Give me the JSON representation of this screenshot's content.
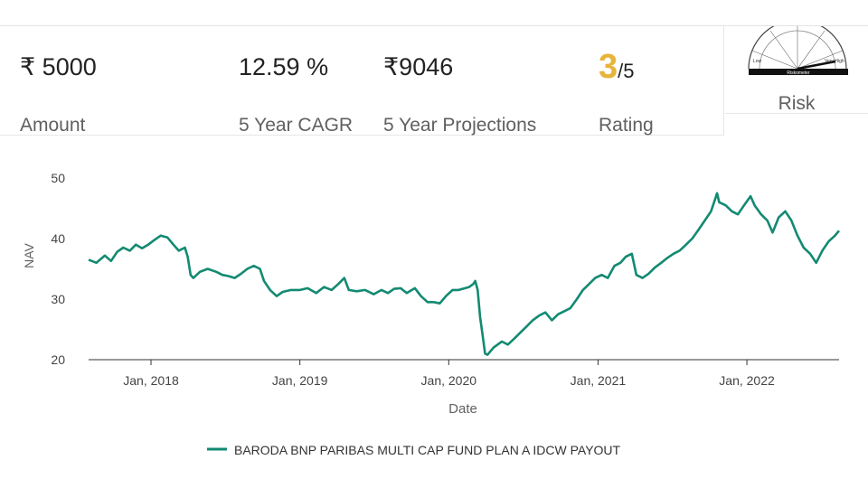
{
  "stats": {
    "amount": {
      "value": "₹ 5000",
      "label": "Amount"
    },
    "cagr": {
      "value": "12.59 %",
      "label": "5 Year CAGR"
    },
    "projection": {
      "value": "₹9046",
      "label": "5 Year Projections"
    },
    "rating": {
      "value": "3",
      "suffix": "/5",
      "label": "Rating"
    },
    "risk": {
      "label": "Risk",
      "meter_text": "Riskometer",
      "meter_low": "Low",
      "meter_high": "Very High",
      "needle_level": "Very High"
    }
  },
  "colors": {
    "line": "#138a72",
    "rating": "#e7b43a",
    "axis": "#333333",
    "label": "#606060"
  },
  "chart_data": {
    "type": "line",
    "xlabel": "Date",
    "ylabel": "NAV",
    "ylim": [
      20,
      50
    ],
    "yticks": [
      20,
      30,
      40,
      50
    ],
    "xticks": [
      "Jan, 2018",
      "Jan, 2019",
      "Jan, 2020",
      "Jan, 2021",
      "Jan, 2022"
    ],
    "xrange": [
      "2017-08-01",
      "2022-08-15"
    ],
    "legend_position": "bottom",
    "series": [
      {
        "name": "BARODA BNP PARIBAS MULTI CAP FUND PLAN A IDCW PAYOUT",
        "points": [
          [
            "2017-08-01",
            36.5
          ],
          [
            "2017-08-20",
            36.0
          ],
          [
            "2017-09-10",
            37.2
          ],
          [
            "2017-09-25",
            36.3
          ],
          [
            "2017-10-10",
            37.8
          ],
          [
            "2017-10-25",
            38.5
          ],
          [
            "2017-11-10",
            38.0
          ],
          [
            "2017-11-25",
            39.0
          ],
          [
            "2017-12-10",
            38.4
          ],
          [
            "2017-12-25",
            39.0
          ],
          [
            "2018-01-10",
            39.8
          ],
          [
            "2018-01-25",
            40.5
          ],
          [
            "2018-02-10",
            40.2
          ],
          [
            "2018-02-25",
            39.0
          ],
          [
            "2018-03-10",
            38.0
          ],
          [
            "2018-03-25",
            38.5
          ],
          [
            "2018-04-01",
            37.0
          ],
          [
            "2018-04-08",
            34.0
          ],
          [
            "2018-04-15",
            33.5
          ],
          [
            "2018-05-01",
            34.5
          ],
          [
            "2018-05-20",
            35.0
          ],
          [
            "2018-06-10",
            34.5
          ],
          [
            "2018-06-25",
            34.0
          ],
          [
            "2018-07-10",
            33.8
          ],
          [
            "2018-07-25",
            33.5
          ],
          [
            "2018-08-10",
            34.2
          ],
          [
            "2018-08-25",
            35.0
          ],
          [
            "2018-09-10",
            35.5
          ],
          [
            "2018-09-25",
            35.0
          ],
          [
            "2018-10-05",
            33.0
          ],
          [
            "2018-10-20",
            31.5
          ],
          [
            "2018-11-05",
            30.5
          ],
          [
            "2018-11-20",
            31.2
          ],
          [
            "2018-12-10",
            31.5
          ],
          [
            "2019-01-01",
            31.5
          ],
          [
            "2019-01-20",
            31.8
          ],
          [
            "2019-02-10",
            31.0
          ],
          [
            "2019-03-01",
            32.0
          ],
          [
            "2019-03-20",
            31.5
          ],
          [
            "2019-04-05",
            32.5
          ],
          [
            "2019-04-20",
            33.5
          ],
          [
            "2019-05-01",
            31.5
          ],
          [
            "2019-05-20",
            31.3
          ],
          [
            "2019-06-10",
            31.5
          ],
          [
            "2019-07-01",
            30.8
          ],
          [
            "2019-07-20",
            31.5
          ],
          [
            "2019-08-05",
            31.0
          ],
          [
            "2019-08-20",
            31.7
          ],
          [
            "2019-09-05",
            31.8
          ],
          [
            "2019-09-20",
            31.0
          ],
          [
            "2019-10-10",
            31.8
          ],
          [
            "2019-10-25",
            30.5
          ],
          [
            "2019-11-10",
            29.5
          ],
          [
            "2019-11-25",
            29.5
          ],
          [
            "2019-12-10",
            29.3
          ],
          [
            "2019-12-25",
            30.5
          ],
          [
            "2020-01-10",
            31.5
          ],
          [
            "2020-01-25",
            31.5
          ],
          [
            "2020-02-10",
            31.8
          ],
          [
            "2020-02-20",
            32.0
          ],
          [
            "2020-03-01",
            32.5
          ],
          [
            "2020-03-06",
            33.0
          ],
          [
            "2020-03-12",
            31.5
          ],
          [
            "2020-03-18",
            27.0
          ],
          [
            "2020-03-24",
            24.0
          ],
          [
            "2020-03-30",
            21.0
          ],
          [
            "2020-04-05",
            20.8
          ],
          [
            "2020-04-20",
            22.0
          ],
          [
            "2020-05-10",
            23.0
          ],
          [
            "2020-05-25",
            22.5
          ],
          [
            "2020-06-10",
            23.5
          ],
          [
            "2020-06-25",
            24.5
          ],
          [
            "2020-07-10",
            25.5
          ],
          [
            "2020-07-25",
            26.5
          ],
          [
            "2020-08-10",
            27.3
          ],
          [
            "2020-08-25",
            27.8
          ],
          [
            "2020-09-10",
            26.5
          ],
          [
            "2020-09-25",
            27.5
          ],
          [
            "2020-10-10",
            28.0
          ],
          [
            "2020-10-25",
            28.5
          ],
          [
            "2020-11-10",
            30.0
          ],
          [
            "2020-11-25",
            31.5
          ],
          [
            "2020-12-10",
            32.5
          ],
          [
            "2020-12-25",
            33.5
          ],
          [
            "2021-01-10",
            34.0
          ],
          [
            "2021-01-25",
            33.5
          ],
          [
            "2021-02-10",
            35.5
          ],
          [
            "2021-02-25",
            36.0
          ],
          [
            "2021-03-10",
            37.0
          ],
          [
            "2021-03-25",
            37.5
          ],
          [
            "2021-04-05",
            34.0
          ],
          [
            "2021-04-20",
            33.5
          ],
          [
            "2021-05-05",
            34.2
          ],
          [
            "2021-05-20",
            35.2
          ],
          [
            "2021-06-05",
            36.0
          ],
          [
            "2021-06-20",
            36.8
          ],
          [
            "2021-07-05",
            37.5
          ],
          [
            "2021-07-20",
            38.0
          ],
          [
            "2021-08-05",
            39.0
          ],
          [
            "2021-08-20",
            40.0
          ],
          [
            "2021-09-05",
            41.5
          ],
          [
            "2021-09-20",
            43.0
          ],
          [
            "2021-10-05",
            44.5
          ],
          [
            "2021-10-15",
            46.5
          ],
          [
            "2021-10-20",
            47.5
          ],
          [
            "2021-10-25",
            46.0
          ],
          [
            "2021-11-10",
            45.5
          ],
          [
            "2021-11-25",
            44.5
          ],
          [
            "2021-12-10",
            44.0
          ],
          [
            "2021-12-25",
            45.5
          ],
          [
            "2022-01-10",
            47.0
          ],
          [
            "2022-01-20",
            45.5
          ],
          [
            "2022-02-05",
            44.0
          ],
          [
            "2022-02-20",
            43.0
          ],
          [
            "2022-03-05",
            41.0
          ],
          [
            "2022-03-20",
            43.5
          ],
          [
            "2022-04-05",
            44.5
          ],
          [
            "2022-04-20",
            43.0
          ],
          [
            "2022-05-05",
            40.5
          ],
          [
            "2022-05-20",
            38.5
          ],
          [
            "2022-06-05",
            37.5
          ],
          [
            "2022-06-20",
            36.0
          ],
          [
            "2022-07-05",
            38.0
          ],
          [
            "2022-07-20",
            39.5
          ],
          [
            "2022-08-05",
            40.5
          ],
          [
            "2022-08-15",
            41.3
          ]
        ]
      }
    ]
  }
}
